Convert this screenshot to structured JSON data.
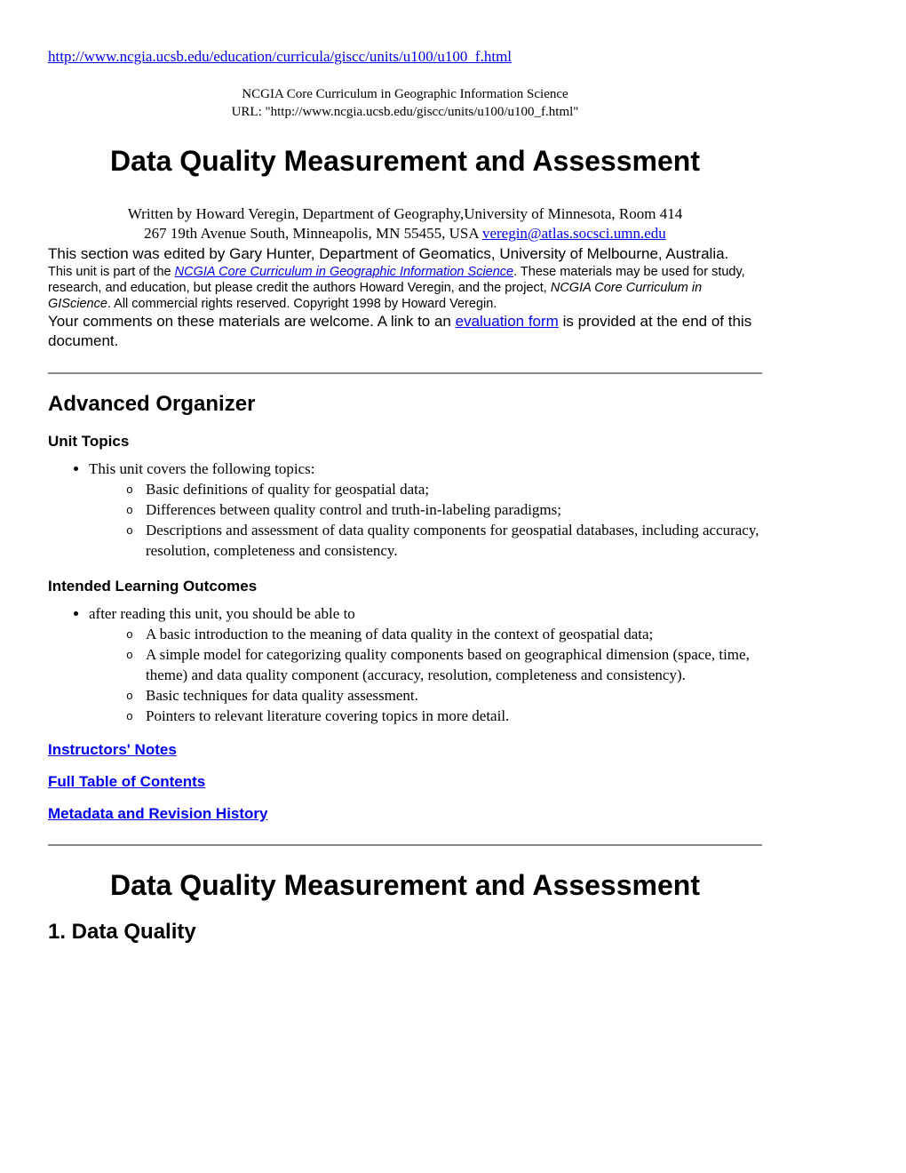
{
  "top_url": {
    "text": "http://www.ncgia.ucsb.edu/education/curricula/giscc/units/u100/u100_f.html"
  },
  "header": {
    "line1": "NCGIA Core Curriculum in Geographic Information Science",
    "line2": "URL: \"http://www.ncgia.ucsb.edu/giscc/units/u100/u100_f.html\""
  },
  "title": "Data Quality Measurement and Assessment",
  "author": {
    "line1": "Written by Howard Veregin, Department of Geography,University of Minnesota, Room 414",
    "line2_prefix": "267 19th Avenue South, Minneapolis, MN 55455, USA ",
    "email": "veregin@atlas.socsci.umn.edu"
  },
  "editor": "This section was edited by Gary Hunter, Department of Geomatics, University of Melbourne, Australia.",
  "notice": {
    "prefix": "This unit is part of the ",
    "link": "NCGIA Core Curriculum in Geographic Information Science",
    "mid": ". These materials may be used for study, research, and education, but please credit the authors Howard Veregin, and the project, ",
    "italic": "NCGIA Core Curriculum in GIScience",
    "suffix": ". All commercial rights reserved. Copyright 1998 by Howard Veregin."
  },
  "comments": {
    "prefix": "Your comments on these materials are welcome. A link to an ",
    "link": "evaluation form",
    "suffix": " is provided at the end of this document."
  },
  "organizer": {
    "heading": "Advanced Organizer",
    "unit_topics": {
      "heading": "Unit Topics",
      "lead": "This unit covers the following topics:",
      "items": [
        "Basic definitions of quality for geospatial data;",
        "Differences between quality control and truth-in-labeling paradigms;",
        "Descriptions and assessment of data quality components for geospatial databases, including accuracy, resolution, completeness and consistency."
      ]
    },
    "outcomes": {
      "heading": "Intended Learning Outcomes",
      "lead": "after reading this unit, you should be able to",
      "items": [
        "A basic introduction to the meaning of data quality in the context of geospatial data;",
        "A simple model for categorizing quality components based on geographical dimension (space, time, theme) and data quality component (accuracy, resolution, completeness and consistency).",
        "Basic techniques for data quality assessment.",
        "Pointers to relevant literature covering topics in more detail."
      ]
    }
  },
  "links": {
    "instructors": "Instructors' Notes",
    "toc": "Full Table of Contents",
    "metadata": "Metadata and Revision History"
  },
  "title2": "Data Quality Measurement and Assessment",
  "section1": "1. Data Quality"
}
